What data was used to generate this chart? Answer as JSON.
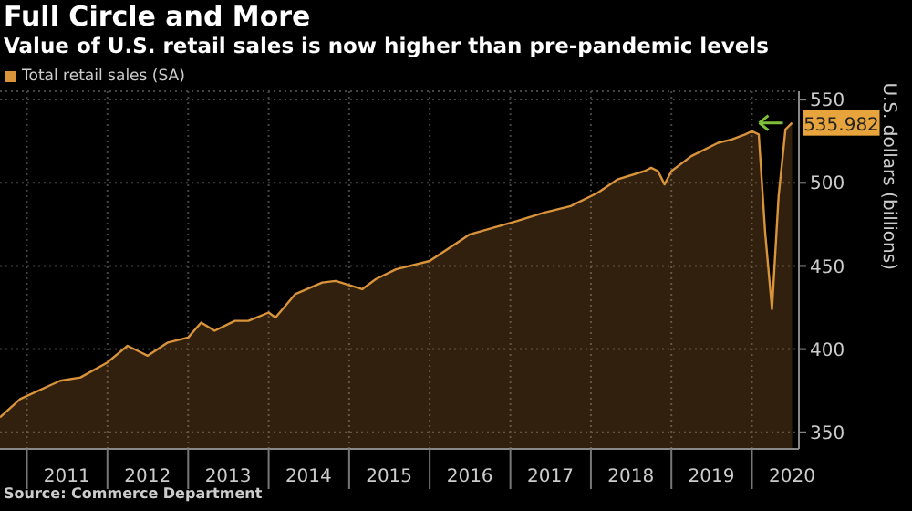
{
  "chart_data": {
    "type": "area",
    "title": "Full Circle and More",
    "subtitle": "Value of U.S. retail sales is now higher than pre-pandemic levels",
    "ylabel": "U.S. dollars (billions)",
    "annotations": [
      {
        "text": "535.982",
        "x": "2020-07",
        "y": 535.982
      },
      "Source: Commerce Department"
    ],
    "x": [
      "2010-09",
      "2010-12",
      "2011-06",
      "2011-09",
      "2012-01",
      "2012-04",
      "2012-06",
      "2012-07",
      "2012-10",
      "2013-01",
      "2013-03",
      "2013-05",
      "2013-08",
      "2013-10",
      "2014-01",
      "2014-02",
      "2014-05",
      "2014-09",
      "2014-11",
      "2015-03",
      "2015-05",
      "2015-08",
      "2016-01",
      "2016-07",
      "2017-02",
      "2017-06",
      "2017-10",
      "2018-02",
      "2018-05",
      "2018-09",
      "2018-10",
      "2018-11",
      "2018-12",
      "2019-01",
      "2019-04",
      "2019-08",
      "2019-10",
      "2019-12",
      "2020-01",
      "2020-02",
      "2020-03",
      "2020-04",
      "2020-05",
      "2020-06",
      "2020-07"
    ],
    "series": [
      {
        "name": "Total retail sales (SA)",
        "color": "#d9933a",
        "values": [
          359,
          370,
          381,
          383,
          392,
          402,
          398,
          396,
          404,
          407,
          416,
          411,
          417,
          417,
          422,
          419,
          433,
          440,
          441,
          436,
          442,
          448,
          453,
          469,
          477,
          482,
          486,
          494,
          502,
          507,
          509,
          507,
          499,
          507,
          516,
          524,
          526,
          529,
          531,
          529,
          470,
          424,
          492,
          532,
          535.982
        ]
      }
    ],
    "xlim": [
      "2010-09",
      "2020-08"
    ],
    "xticks": [
      {
        "value": "2011-01",
        "label": null
      },
      {
        "value": "2011-07",
        "label": "2011"
      },
      {
        "value": "2012-01",
        "label": null
      },
      {
        "value": "2012-07",
        "label": "2012"
      },
      {
        "value": "2013-01",
        "label": null
      },
      {
        "value": "2013-07",
        "label": "2013"
      },
      {
        "value": "2014-01",
        "label": null
      },
      {
        "value": "2014-07",
        "label": "2014"
      },
      {
        "value": "2015-01",
        "label": null
      },
      {
        "value": "2015-07",
        "label": "2015"
      },
      {
        "value": "2016-01",
        "label": null
      },
      {
        "value": "2016-07",
        "label": "2016"
      },
      {
        "value": "2017-01",
        "label": null
      },
      {
        "value": "2017-07",
        "label": "2017"
      },
      {
        "value": "2018-01",
        "label": null
      },
      {
        "value": "2018-07",
        "label": "2018"
      },
      {
        "value": "2019-01",
        "label": null
      },
      {
        "value": "2019-07",
        "label": "2019"
      },
      {
        "value": "2020-01",
        "label": null
      },
      {
        "value": "2020-07",
        "label": "2020"
      }
    ],
    "ylim": [
      340,
      555
    ],
    "yticks": [
      350,
      400,
      450,
      500,
      550
    ],
    "grid": true,
    "legend": "top left"
  }
}
